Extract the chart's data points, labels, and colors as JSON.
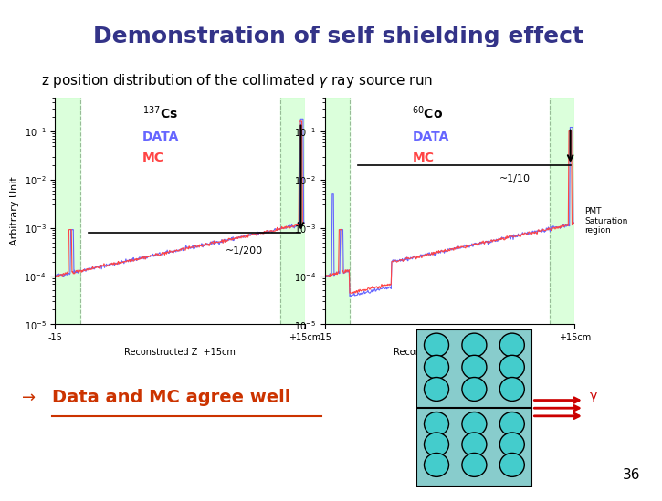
{
  "title": "Demonstration of self shielding effect",
  "title_bg": "#ffffaa",
  "title_color": "#333388",
  "subtitle": "z position distribution of the collimated γ ray source run",
  "subtitle_color": "#000000",
  "background": "#ffffff",
  "page_number": "36",
  "bottom_text_arrow": "→",
  "bottom_text": "Data and MC agree well",
  "bottom_text_color": "#cc3300",
  "plot_bg": "#ffffff",
  "green_band_color": "#ccffcc",
  "plot1_isotope_label": "$^{137}$Cs",
  "plot2_isotope_label": "$^{60}$Co",
  "ylabel": "Arbitrary Unit",
  "xlabel1": "Reconstructed Z  +15cm",
  "xlabel2": "Reconstructed Z  +15cm",
  "data_label": "DATA",
  "mc_label": "MC",
  "data_color": "#6666ff",
  "mc_color": "#ff4444",
  "annotation1": "~1/200",
  "annotation2": "~1/10",
  "pmt_text": "PMT\nSaturation\nregion",
  "circle_color": "#44cccc",
  "circle_edge": "#000000",
  "detector_bg": "#88cccc",
  "arrow_color": "#cc0000",
  "gamma_label": "γ"
}
